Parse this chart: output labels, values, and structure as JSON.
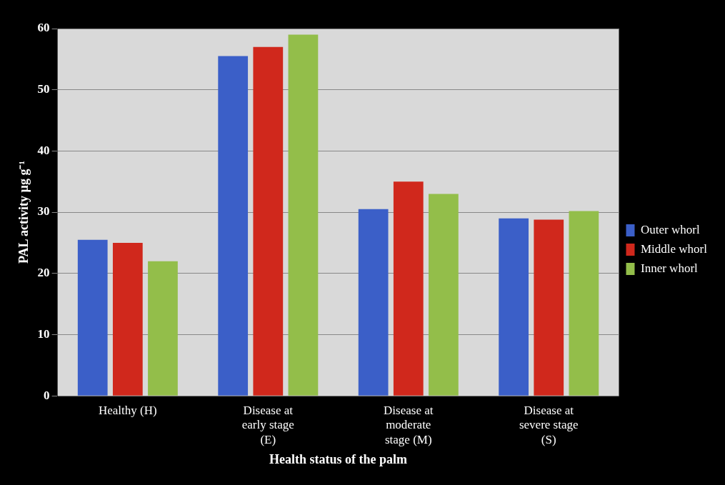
{
  "chart_data": {
    "type": "bar",
    "xlabel": "Health status of the palm",
    "ylabel": "PAL activity µg g⁻¹",
    "categories": [
      "Healthy (H)",
      "Disease at early stage (E)",
      "Disease at moderate stage (M)",
      "Disease at severe stage (S)"
    ],
    "series": [
      {
        "name": "Outer whorl",
        "color": "#3b5fc8",
        "values": [
          25.5,
          55.5,
          30.5,
          29
        ]
      },
      {
        "name": "Middle whorl",
        "color": "#d0281c",
        "values": [
          25,
          57,
          35,
          28.8
        ]
      },
      {
        "name": "Inner whorl",
        "color": "#93be4a",
        "values": [
          22,
          59,
          33,
          30.2
        ]
      }
    ],
    "ylim": [
      0,
      60
    ],
    "yticks": [
      0,
      10,
      20,
      30,
      40,
      50,
      60
    ],
    "grid": "y",
    "legend": "right"
  }
}
